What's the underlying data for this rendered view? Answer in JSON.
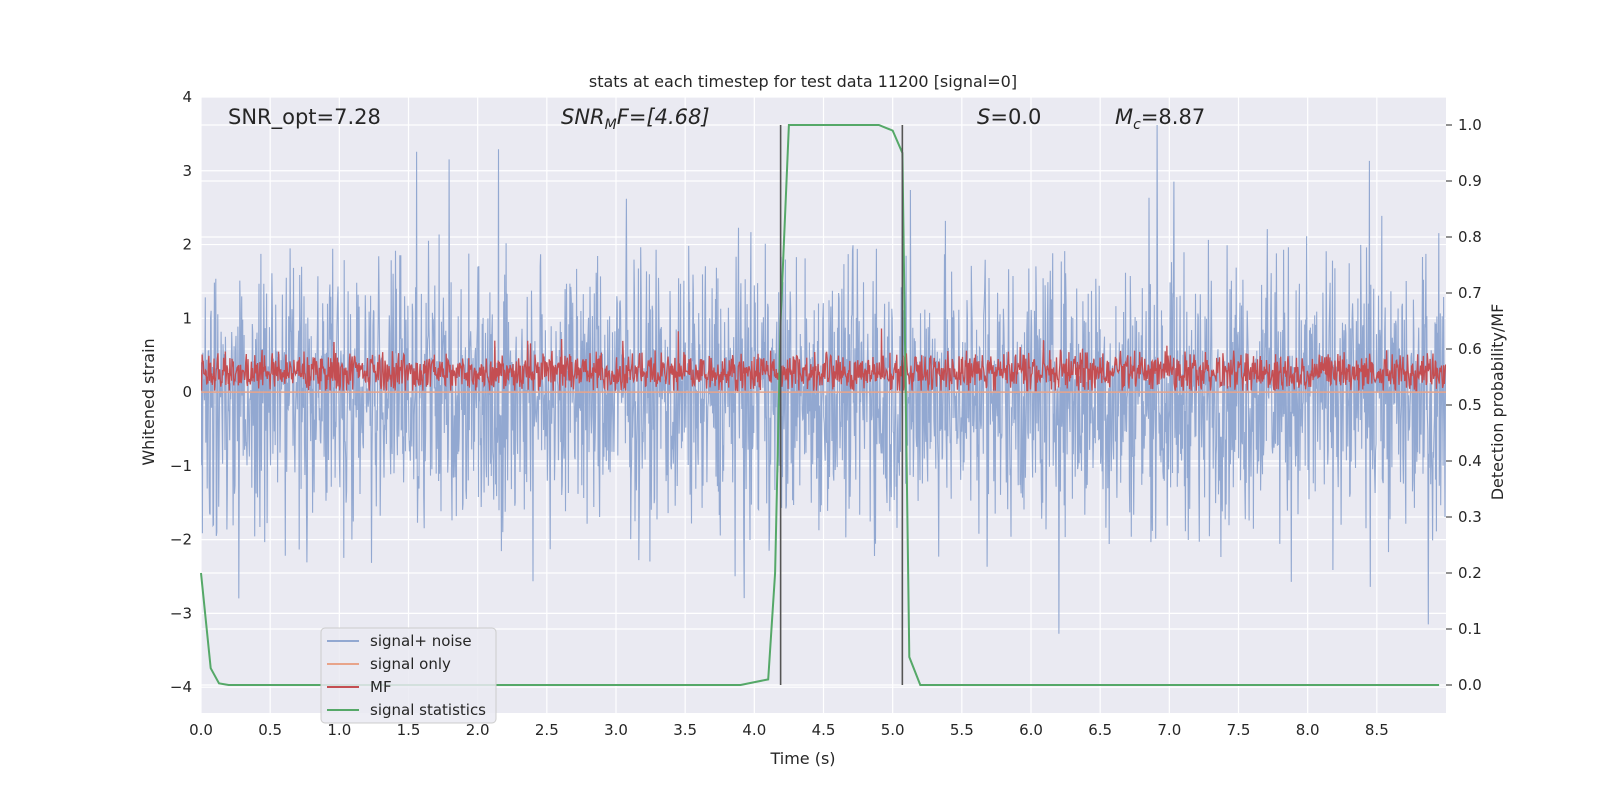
{
  "chart_data": {
    "type": "line",
    "title": "stats at each timestep for test data 11200 [signal=0]",
    "xlabel": "Time (s)",
    "ylabel": "Whitened strain",
    "y2label": "Detection probability/MF",
    "xlim": [
      0.0,
      9.0
    ],
    "ylim": [
      -4.35,
      4.0
    ],
    "y2lim": [
      -0.05,
      1.05
    ],
    "xticks": [
      0.0,
      0.5,
      1.0,
      1.5,
      2.0,
      2.5,
      3.0,
      3.5,
      4.0,
      4.5,
      5.0,
      5.5,
      6.0,
      6.5,
      7.0,
      7.5,
      8.0,
      8.5
    ],
    "yticks": [
      4,
      3,
      2,
      1,
      0,
      -1,
      -2,
      -3,
      -4
    ],
    "y2ticks": [
      1.0,
      0.9,
      0.8,
      0.7,
      0.6,
      0.5,
      0.4,
      0.3,
      0.2,
      0.1,
      0.0
    ],
    "grid": true,
    "legend_position": "lower-left",
    "annotations": {
      "snr_opt": "SNR_opt=7.28",
      "snr_mf_base": "SNR",
      "snr_mf_sub": "M",
      "snr_mf_rest": "F=[4.68]",
      "s_base": "S",
      "s_rest": "=0.0",
      "mc_base": "M",
      "mc_sub": "c",
      "mc_rest": "=8.87"
    },
    "vlines_x": [
      4.19,
      5.07
    ],
    "series": [
      {
        "name": "signal+ noise",
        "color": "#92a8d1",
        "axis": "left",
        "kind": "noise",
        "x_range": [
          0.0,
          9.0
        ],
        "y_range": [
          -4.0,
          3.62
        ]
      },
      {
        "name": "signal only",
        "color": "#e8a48a",
        "axis": "left",
        "kind": "flat",
        "x_range": [
          0.0,
          9.0
        ],
        "values": [
          0.0
        ]
      },
      {
        "name": "MF",
        "color": "#c44e52",
        "axis": "left",
        "kind": "noise",
        "x_range": [
          0.0,
          9.0
        ],
        "y_range": [
          0.02,
          1.02
        ]
      },
      {
        "name": "signal statistics",
        "color": "#55a868",
        "axis": "right",
        "kind": "line",
        "x": [
          0.0,
          0.07,
          0.13,
          0.2,
          0.3,
          0.5,
          1.0,
          2.0,
          3.0,
          3.9,
          4.1,
          4.15,
          4.19,
          4.25,
          4.3,
          4.5,
          4.9,
          5.0,
          5.07,
          5.12,
          5.2,
          5.3,
          6.0,
          7.0,
          8.0,
          8.95
        ],
        "values": [
          0.2,
          0.03,
          0.003,
          0.0,
          0.0,
          0.0,
          0.0,
          0.0,
          0.0,
          0.0,
          0.01,
          0.2,
          0.65,
          1.0,
          1.0,
          1.0,
          1.0,
          0.99,
          0.95,
          0.05,
          0.0,
          0.0,
          0.0,
          0.0,
          0.0,
          0.0
        ]
      }
    ]
  }
}
